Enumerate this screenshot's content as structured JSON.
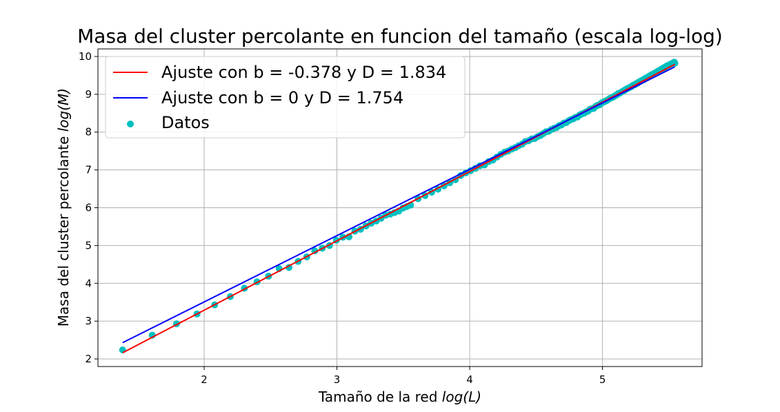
{
  "chart_data": {
    "type": "scatter",
    "title": "Masa del cluster percolante en funcion del tamaño (escala log-log)",
    "xlabel_prefix": "Tamaño de la red ",
    "xlabel_math": "log(L)",
    "ylabel_prefix": "Masa del cluster percolante ",
    "ylabel_math": "log(M)",
    "xlim": [
      1.2,
      5.75
    ],
    "ylim": [
      1.8,
      10.2
    ],
    "xticks": [
      2,
      3,
      4,
      5
    ],
    "yticks": [
      2,
      3,
      4,
      5,
      6,
      7,
      8,
      9,
      10
    ],
    "grid": true,
    "legend_position": "top-left",
    "series": [
      {
        "name": "Ajuste con b = -0.378 y D = 1.834",
        "kind": "line",
        "color": "#ff0000",
        "slope": 1.834,
        "intercept": -0.378,
        "x_range": [
          1.386,
          5.545
        ]
      },
      {
        "name": "Ajuste con b = 0 y D = 1.754",
        "kind": "line",
        "color": "#0000ff",
        "slope": 1.754,
        "intercept": 0,
        "x_range": [
          1.386,
          5.545
        ]
      },
      {
        "name": "Datos",
        "kind": "scatter",
        "color": "#00bfbf",
        "x": [
          1.386,
          1.609,
          1.792,
          1.946,
          2.079,
          2.197,
          2.303,
          2.398,
          2.485,
          2.565,
          2.639,
          2.708,
          2.773,
          2.833,
          2.89,
          2.944,
          2.996,
          3.045,
          3.091,
          3.135,
          3.178,
          3.219,
          3.258,
          3.296,
          3.332,
          3.367,
          3.401,
          3.434,
          3.466,
          3.497,
          3.526,
          3.555,
          3.611,
          3.664,
          3.714,
          3.761,
          3.807,
          3.85,
          3.892,
          3.932,
          3.97,
          4.007,
          4.043,
          4.078,
          4.111,
          4.143,
          4.174,
          4.205,
          4.234,
          4.263,
          4.29,
          4.317,
          4.344,
          4.369,
          4.394,
          4.419,
          4.443,
          4.466,
          4.489,
          4.511,
          4.533,
          4.554,
          4.575,
          4.595,
          4.615,
          4.635,
          4.654,
          4.673,
          4.691,
          4.71,
          4.727,
          4.745,
          4.762,
          4.779,
          4.796,
          4.812,
          4.828,
          4.844,
          4.86,
          4.875,
          4.89,
          4.905,
          4.92,
          4.934,
          4.949,
          4.963,
          4.977,
          4.99,
          5.004,
          5.017,
          5.03,
          5.043,
          5.056,
          5.069,
          5.081,
          5.094,
          5.106,
          5.118,
          5.13,
          5.142,
          5.153,
          5.165,
          5.176,
          5.187,
          5.198,
          5.209,
          5.22,
          5.231,
          5.242,
          5.252,
          5.263,
          5.273,
          5.283,
          5.293,
          5.303,
          5.313,
          5.323,
          5.333,
          5.342,
          5.352,
          5.361,
          5.371,
          5.38,
          5.389,
          5.398,
          5.407,
          5.416,
          5.425,
          5.434,
          5.442,
          5.451,
          5.46,
          5.468,
          5.476,
          5.485,
          5.493,
          5.501,
          5.509,
          5.517,
          5.525,
          5.533,
          5.541,
          5.545
        ],
        "y": [
          2.24,
          2.63,
          2.93,
          3.19,
          3.43,
          3.65,
          3.87,
          4.04,
          4.19,
          4.39,
          4.42,
          4.58,
          4.7,
          4.86,
          4.93,
          5.0,
          5.14,
          5.22,
          5.23,
          5.38,
          5.43,
          5.52,
          5.59,
          5.65,
          5.72,
          5.8,
          5.83,
          5.87,
          5.91,
          5.99,
          6.03,
          6.07,
          6.24,
          6.32,
          6.41,
          6.49,
          6.58,
          6.66,
          6.74,
          6.85,
          6.92,
          6.98,
          7.04,
          7.11,
          7.13,
          7.22,
          7.26,
          7.34,
          7.41,
          7.47,
          7.5,
          7.55,
          7.59,
          7.64,
          7.68,
          7.75,
          7.77,
          7.82,
          7.83,
          7.88,
          7.91,
          7.96,
          8.01,
          8.02,
          8.07,
          8.1,
          8.12,
          8.17,
          8.19,
          8.24,
          8.25,
          8.3,
          8.33,
          8.35,
          8.39,
          8.4,
          8.45,
          8.48,
          8.5,
          8.53,
          8.55,
          8.6,
          8.62,
          8.63,
          8.68,
          8.71,
          8.72,
          8.76,
          8.79,
          8.81,
          8.83,
          8.86,
          8.89,
          8.91,
          8.93,
          8.96,
          8.98,
          9.02,
          9.03,
          9.06,
          9.08,
          9.1,
          9.13,
          9.15,
          9.17,
          9.19,
          9.21,
          9.24,
          9.25,
          9.28,
          9.29,
          9.32,
          9.34,
          9.36,
          9.38,
          9.39,
          9.42,
          9.44,
          9.45,
          9.48,
          9.49,
          9.52,
          9.53,
          9.55,
          9.57,
          9.58,
          9.61,
          9.62,
          9.64,
          9.66,
          9.67,
          9.7,
          9.71,
          9.72,
          9.75,
          9.76,
          9.77,
          9.79,
          9.8,
          9.82,
          9.83,
          9.85,
          9.82
        ]
      }
    ]
  }
}
